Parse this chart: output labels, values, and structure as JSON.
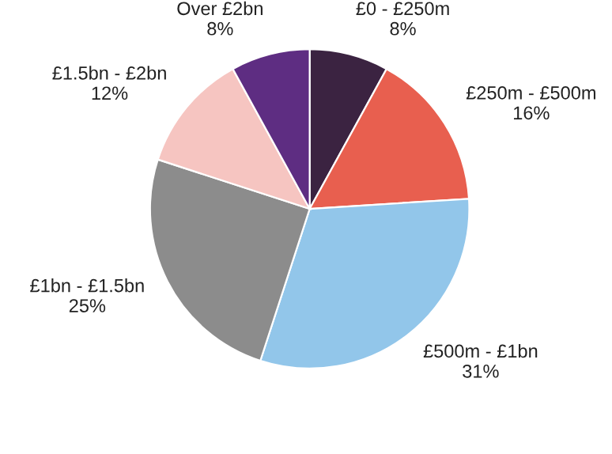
{
  "chart_data": {
    "type": "pie",
    "categories": [
      "£0 - £250m",
      "£250m - £500m",
      "£500m - £1bn",
      "£1bn - £1.5bn",
      "£1.5bn - £2bn",
      "Over £2bn"
    ],
    "values": [
      8,
      16,
      31,
      25,
      12,
      8
    ],
    "value_labels": [
      "8%",
      "16%",
      "31%",
      "25%",
      "12%",
      "8%"
    ],
    "colors": [
      "#3b2341",
      "#e85f4f",
      "#92c6ea",
      "#8c8c8c",
      "#f6c5c1",
      "#5e2d82"
    ],
    "legend": false
  }
}
